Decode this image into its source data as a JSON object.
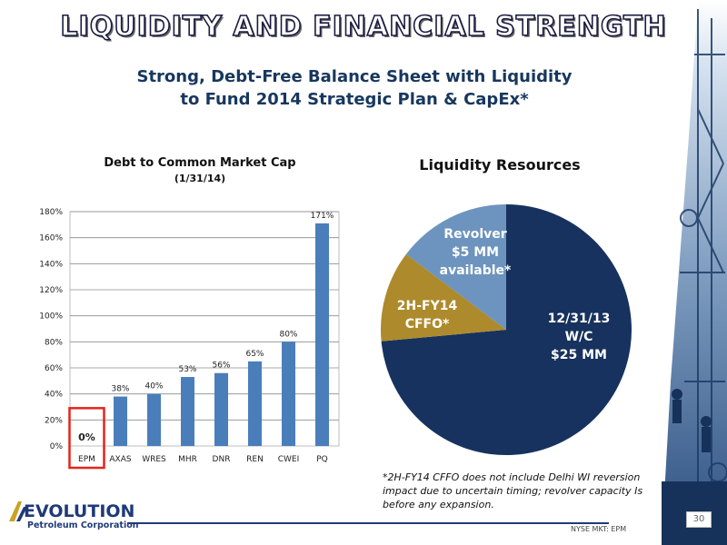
{
  "slide": {
    "title": "LIQUIDITY AND FINANCIAL STRENGTH",
    "subtitle_line1": "Strong, Debt-Free Balance Sheet with Liquidity",
    "subtitle_line2": "to Fund 2014 Strategic Plan & CapEx*",
    "footnote": "*2H-FY14 CFFO does not include Delhi WI reversion impact due to uncertain timing; revolver capacity Is before any expansion.",
    "logo_main": "EVOLUTION",
    "logo_sub": "Petroleum Corporation",
    "ticker": "NYSE MKT: EPM",
    "page_number": "30"
  },
  "chart_data": [
    {
      "type": "bar",
      "title": "Debt to Common Market Cap",
      "subtitle": "(1/31/14)",
      "categories": [
        "EPM",
        "AXAS",
        "WRES",
        "MHR",
        "DNR",
        "REN",
        "CWEI",
        "PQ"
      ],
      "values": [
        0,
        38,
        40,
        53,
        56,
        65,
        80,
        171
      ],
      "data_labels": [
        "0%",
        "38%",
        "40%",
        "53%",
        "56%",
        "65%",
        "80%",
        "171%"
      ],
      "ytick_labels": [
        "0%",
        "20%",
        "40%",
        "60%",
        "80%",
        "100%",
        "120%",
        "140%",
        "160%",
        "180%"
      ],
      "ylim": [
        0,
        180
      ],
      "grid": "horizontal",
      "highlight_category": "EPM",
      "colors": {
        "bar": "#4a7ebb",
        "highlight_box": "#e3241b",
        "grid": "#8c8c8c"
      }
    },
    {
      "type": "pie",
      "title": "Liquidity Resources",
      "slices": [
        {
          "label_lines": [
            "12/31/13",
            "W/C",
            "$25 MM"
          ],
          "value": 25,
          "color": "#17325e"
        },
        {
          "label_lines": [
            "2H-FY14",
            "CFFO*"
          ],
          "value": 4,
          "color": "#ad8a2c"
        },
        {
          "label_lines": [
            "Revolver",
            "$5 MM",
            "available*"
          ],
          "value": 5,
          "color": "#6c94be"
        }
      ]
    }
  ]
}
